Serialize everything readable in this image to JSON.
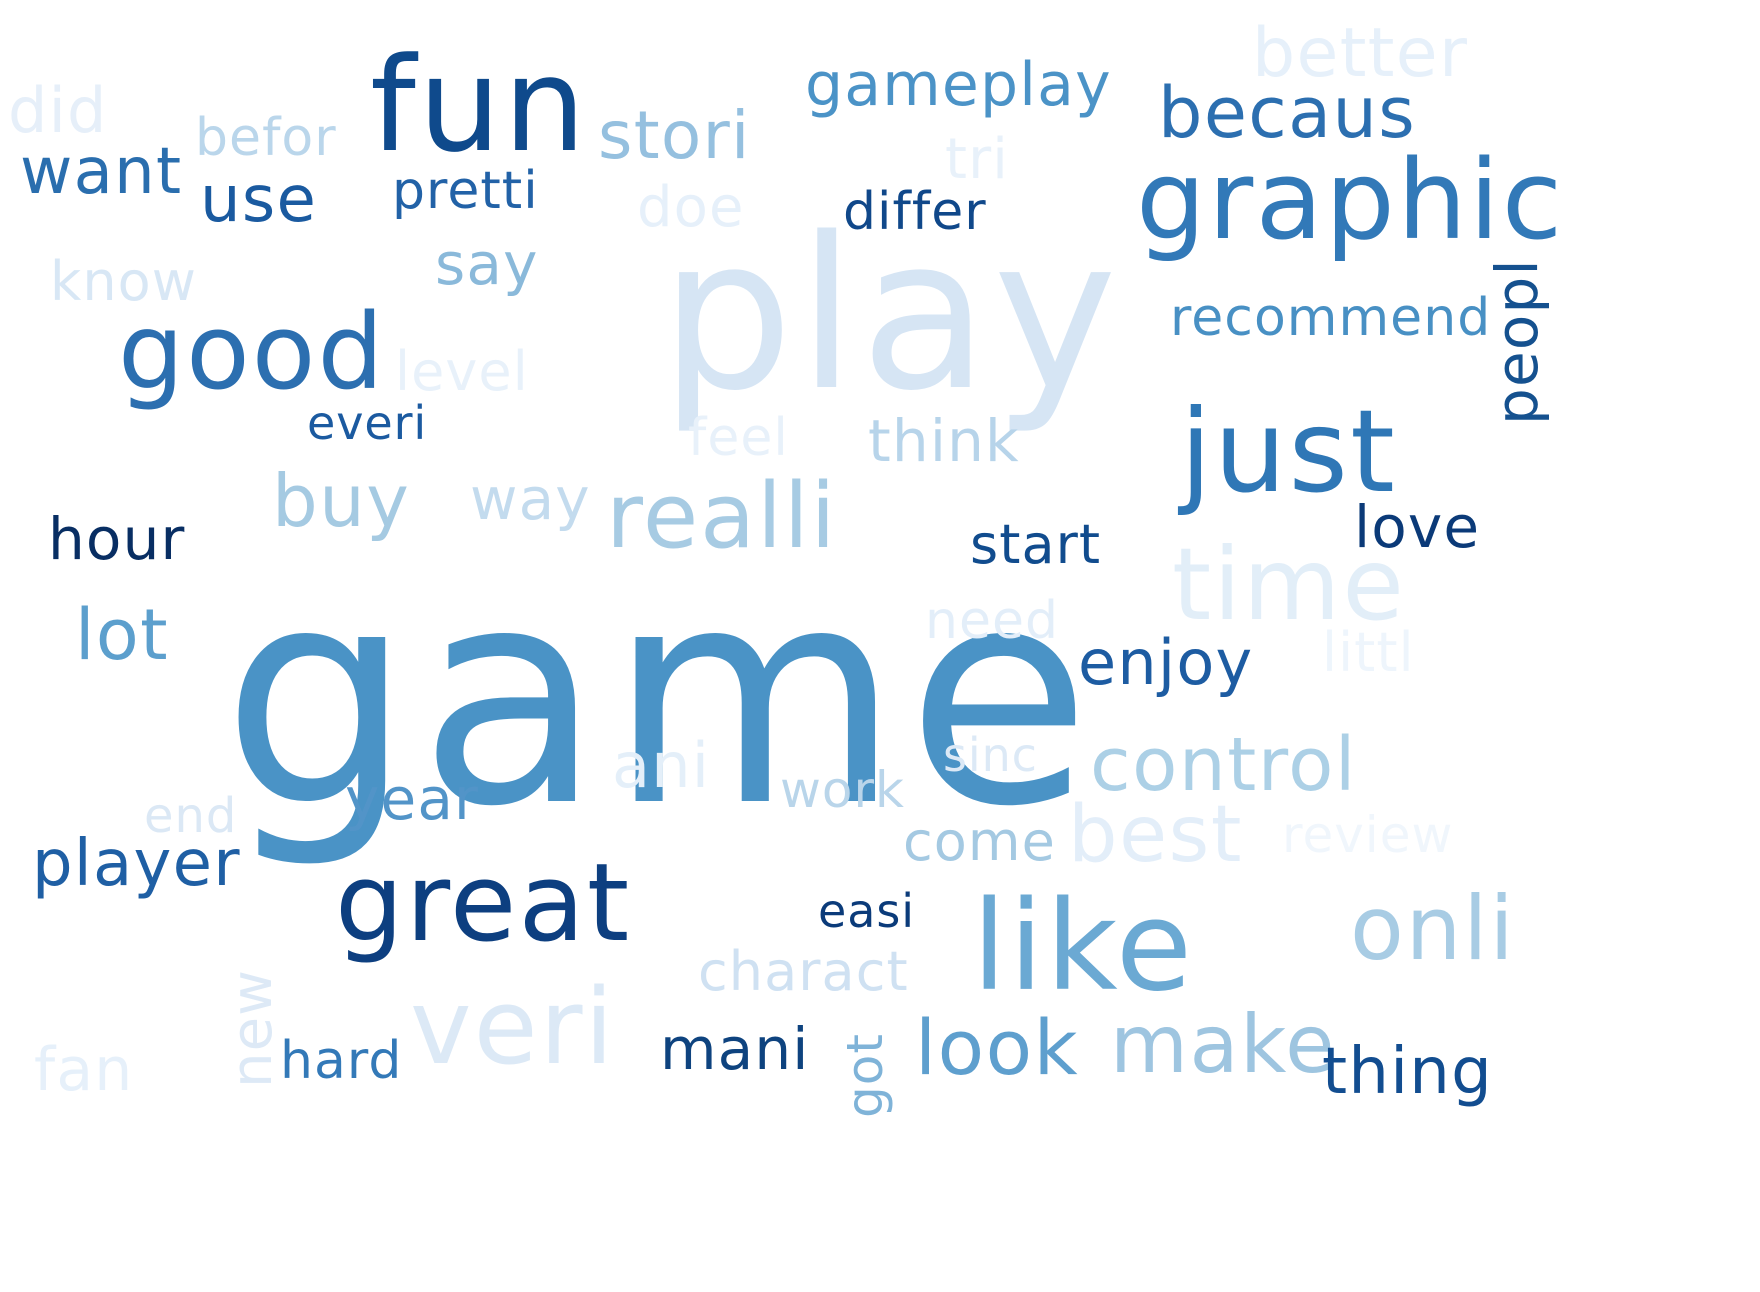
{
  "cloud": {
    "words": [
      {
        "text": "game",
        "color": "#4a93c6"
      },
      {
        "text": "play",
        "color": "#d6e5f4"
      },
      {
        "text": "fun",
        "color": "#0f4a8c"
      },
      {
        "text": "graphic",
        "color": "#3279b8"
      },
      {
        "text": "just",
        "color": "#2f77b6"
      },
      {
        "text": "like",
        "color": "#6ba9d3"
      },
      {
        "text": "great",
        "color": "#0d3f80"
      },
      {
        "text": "good",
        "color": "#2c6fb0"
      },
      {
        "text": "realli",
        "color": "#a7cbe3"
      },
      {
        "text": "time",
        "color": "#e2eef8"
      },
      {
        "text": "veri",
        "color": "#dce9f6"
      },
      {
        "text": "make",
        "color": "#9ec5e0"
      },
      {
        "text": "look",
        "color": "#5e9fce"
      },
      {
        "text": "onli",
        "color": "#a8cce4"
      },
      {
        "text": "control",
        "color": "#acd0e6"
      },
      {
        "text": "best",
        "color": "#e3eef9"
      },
      {
        "text": "better",
        "color": "#e6f0fa"
      },
      {
        "text": "stori",
        "color": "#95c0df"
      },
      {
        "text": "becaus",
        "color": "#2c6fb0"
      },
      {
        "text": "gameplay",
        "color": "#4b93c7"
      },
      {
        "text": "use",
        "color": "#1a5aa0"
      },
      {
        "text": "want",
        "color": "#2a6eae"
      },
      {
        "text": "pretti",
        "color": "#2262a7"
      },
      {
        "text": "differ",
        "color": "#10488a"
      },
      {
        "text": "buy",
        "color": "#a5cae2"
      },
      {
        "text": "player",
        "color": "#1f5fa4"
      },
      {
        "text": "enjoy",
        "color": "#1d5ca2"
      },
      {
        "text": "hour",
        "color": "#082e63"
      },
      {
        "text": "love",
        "color": "#0b3a78"
      },
      {
        "text": "start",
        "color": "#114c8e"
      },
      {
        "text": "thing",
        "color": "#124d90"
      },
      {
        "text": "lot",
        "color": "#5c9fcd"
      },
      {
        "text": "say",
        "color": "#8ab9da"
      },
      {
        "text": "way",
        "color": "#c3dbee"
      },
      {
        "text": "think",
        "color": "#b7d4ea"
      },
      {
        "text": "year",
        "color": "#5294c8"
      },
      {
        "text": "come",
        "color": "#a4c9e2"
      },
      {
        "text": "mani",
        "color": "#0e437f"
      },
      {
        "text": "recommend",
        "color": "#4890c4"
      },
      {
        "text": "everi",
        "color": "#1b5aa0"
      },
      {
        "text": "did",
        "color": "#e6eff9"
      },
      {
        "text": "befor",
        "color": "#bad6eb"
      },
      {
        "text": "tri",
        "color": "#e8f1fa"
      },
      {
        "text": "doe",
        "color": "#e6f0fa"
      },
      {
        "text": "know",
        "color": "#d8e7f5"
      },
      {
        "text": "level",
        "color": "#e8f1fa"
      },
      {
        "text": "feel",
        "color": "#e8f1fa"
      },
      {
        "text": "need",
        "color": "#e3eef9"
      },
      {
        "text": "littl",
        "color": "#eef5fc"
      },
      {
        "text": "ani",
        "color": "#e4eff9"
      },
      {
        "text": "sinc",
        "color": "#dce9f6"
      },
      {
        "text": "work",
        "color": "#b9d5ea"
      },
      {
        "text": "end",
        "color": "#dbe8f5"
      },
      {
        "text": "review",
        "color": "#f0f6fc"
      },
      {
        "text": "easi",
        "color": "#0b3b7a"
      },
      {
        "text": "charact",
        "color": "#cfe1f2"
      },
      {
        "text": "hard",
        "color": "#3379b8"
      },
      {
        "text": "fan",
        "color": "#e6f0fa"
      },
      {
        "text": "new",
        "color": "#dde9f6"
      },
      {
        "text": "got",
        "color": "#7fb3d8"
      },
      {
        "text": "peopl",
        "color": "#15518f"
      }
    ]
  }
}
